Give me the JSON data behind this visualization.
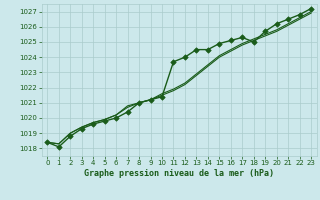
{
  "title": "Graphe pression niveau de la mer (hPa)",
  "background_color": "#cce8eb",
  "grid_color": "#aacccc",
  "line_color": "#1a5c1a",
  "xlim": [
    -0.5,
    23.5
  ],
  "ylim": [
    1017.5,
    1027.5
  ],
  "yticks": [
    1018,
    1019,
    1020,
    1021,
    1022,
    1023,
    1024,
    1025,
    1026,
    1027
  ],
  "xticks": [
    0,
    1,
    2,
    3,
    4,
    5,
    6,
    7,
    8,
    9,
    10,
    11,
    12,
    13,
    14,
    15,
    16,
    17,
    18,
    19,
    20,
    21,
    22,
    23
  ],
  "series": [
    {
      "x": [
        0,
        1,
        2,
        3,
        4,
        5,
        6,
        7,
        8,
        9,
        10,
        11,
        12,
        13,
        14,
        15,
        16,
        17,
        18,
        19,
        20,
        21,
        22,
        23
      ],
      "y": [
        1018.4,
        1018.1,
        1018.8,
        1019.3,
        1019.6,
        1019.8,
        1020.0,
        1020.4,
        1021.0,
        1021.2,
        1021.4,
        1023.7,
        1024.0,
        1024.5,
        1024.5,
        1024.9,
        1025.1,
        1025.3,
        1025.0,
        1025.7,
        1026.2,
        1026.5,
        1026.8,
        1027.2
      ],
      "marker": "D",
      "markersize": 2.8,
      "linewidth": 1.0
    },
    {
      "x": [
        0,
        1,
        2,
        3,
        4,
        5,
        6,
        7,
        8,
        9,
        10,
        11,
        12,
        13,
        14,
        15,
        16,
        17,
        18,
        19,
        20,
        21,
        22,
        23
      ],
      "y": [
        1018.4,
        1018.3,
        1019.0,
        1019.4,
        1019.7,
        1019.9,
        1020.2,
        1020.7,
        1021.0,
        1021.2,
        1021.5,
        1021.8,
        1022.2,
        1022.8,
        1023.4,
        1024.0,
        1024.4,
        1024.8,
        1025.1,
        1025.4,
        1025.7,
        1026.1,
        1026.5,
        1026.9
      ],
      "marker": null,
      "markersize": 0,
      "linewidth": 0.8
    },
    {
      "x": [
        0,
        1,
        2,
        3,
        4,
        5,
        6,
        7,
        8,
        9,
        10,
        11,
        12,
        13,
        14,
        15,
        16,
        17,
        18,
        19,
        20,
        21,
        22,
        23
      ],
      "y": [
        1018.4,
        1018.3,
        1019.0,
        1019.4,
        1019.7,
        1019.9,
        1020.2,
        1020.8,
        1021.0,
        1021.2,
        1021.6,
        1021.9,
        1022.3,
        1022.9,
        1023.5,
        1024.1,
        1024.5,
        1024.9,
        1025.2,
        1025.5,
        1025.8,
        1026.2,
        1026.6,
        1027.0
      ],
      "marker": null,
      "markersize": 0,
      "linewidth": 0.8
    }
  ]
}
